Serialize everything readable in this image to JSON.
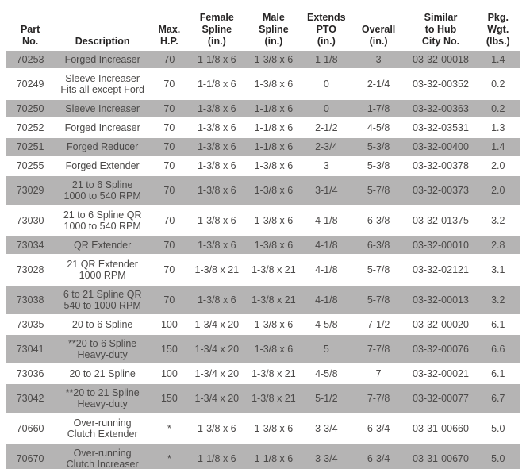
{
  "table": {
    "headers": [
      "Part\nNo.",
      "Description",
      "Max.\nH.P.",
      "Female\nSpline\n(in.)",
      "Male\nSpline\n(in.)",
      "Extends\nPTO\n(in.)",
      "Overall\n(in.)",
      "Similar\nto Hub\nCity No.",
      "Pkg.\nWgt.\n(lbs.)"
    ],
    "rows": [
      {
        "part": "70253",
        "desc": "Forged Increaser",
        "hp": "70",
        "female": "1-1/8 x 6",
        "male": "1-3/8 x 6",
        "pto": "1-1/8",
        "overall": "3",
        "hub": "03-32-00018",
        "wgt": "1.4"
      },
      {
        "part": "70249",
        "desc": "Sleeve Increaser\nFits all except Ford",
        "hp": "70",
        "female": "1-1/8 x 6",
        "male": "1-3/8 x 6",
        "pto": "0",
        "overall": "2-1/4",
        "hub": "03-32-00352",
        "wgt": "0.2"
      },
      {
        "part": "70250",
        "desc": "Sleeve Increaser",
        "hp": "70",
        "female": "1-3/8 x 6",
        "male": "1-1/8 x 6",
        "pto": "0",
        "overall": "1-7/8",
        "hub": "03-32-00363",
        "wgt": "0.2"
      },
      {
        "part": "70252",
        "desc": "Forged Increaser",
        "hp": "70",
        "female": "1-3/8 x 6",
        "male": "1-1/8 x 6",
        "pto": "2-1/2",
        "overall": "4-5/8",
        "hub": "03-32-03531",
        "wgt": "1.3"
      },
      {
        "part": "70251",
        "desc": "Forged Reducer",
        "hp": "70",
        "female": "1-3/8 x 6",
        "male": "1-1/8 x 6",
        "pto": "2-3/4",
        "overall": "5-3/8",
        "hub": "03-32-00400",
        "wgt": "1.4"
      },
      {
        "part": "70255",
        "desc": "Forged Extender",
        "hp": "70",
        "female": "1-3/8 x 6",
        "male": "1-3/8 x 6",
        "pto": "3",
        "overall": "5-3/8",
        "hub": "03-32-00378",
        "wgt": "2.0"
      },
      {
        "part": "73029",
        "desc": "21 to 6 Spline\n1000 to 540 RPM",
        "hp": "70",
        "female": "1-3/8 x 6",
        "male": "1-3/8 x 6",
        "pto": "3-1/4",
        "overall": "5-7/8",
        "hub": "03-32-00373",
        "wgt": "2.0"
      },
      {
        "part": "73030",
        "desc": "21 to 6 Spline QR\n1000 to 540 RPM",
        "hp": "70",
        "female": "1-3/8 x 6",
        "male": "1-3/8 x 6",
        "pto": "4-1/8",
        "overall": "6-3/8",
        "hub": "03-32-01375",
        "wgt": "3.2"
      },
      {
        "part": "73034",
        "desc": "QR Extender",
        "hp": "70",
        "female": "1-3/8 x 6",
        "male": "1-3/8 x 6",
        "pto": "4-1/8",
        "overall": "6-3/8",
        "hub": "03-32-00010",
        "wgt": "2.8"
      },
      {
        "part": "73028",
        "desc": "21 QR Extender\n1000 RPM",
        "hp": "70",
        "female": "1-3/8 x 21",
        "male": "1-3/8 x 21",
        "pto": "4-1/8",
        "overall": "5-7/8",
        "hub": "03-32-02121",
        "wgt": "3.1"
      },
      {
        "part": "73038",
        "desc": "6 to 21 Spline QR\n540 to 1000 RPM",
        "hp": "70",
        "female": "1-3/8 x 6",
        "male": "1-3/8 x 21",
        "pto": "4-1/8",
        "overall": "5-7/8",
        "hub": "03-32-00013",
        "wgt": "3.2"
      },
      {
        "part": "73035",
        "desc": "20 to 6 Spline",
        "hp": "100",
        "female": "1-3/4 x 20",
        "male": "1-3/8 x 6",
        "pto": "4-5/8",
        "overall": "7-1/2",
        "hub": "03-32-00020",
        "wgt": "6.1"
      },
      {
        "part": "73041",
        "desc": "**20 to 6 Spline\nHeavy-duty",
        "hp": "150",
        "female": "1-3/4 x 20",
        "male": "1-3/8 x 6",
        "pto": "5",
        "overall": "7-7/8",
        "hub": "03-32-00076",
        "wgt": "6.6"
      },
      {
        "part": "73036",
        "desc": "20 to 21 Spline",
        "hp": "100",
        "female": "1-3/4 x 20",
        "male": "1-3/8 x 21",
        "pto": "4-5/8",
        "overall": "7",
        "hub": "03-32-00021",
        "wgt": "6.1"
      },
      {
        "part": "73042",
        "desc": "**20 to 21 Spline\nHeavy-duty",
        "hp": "150",
        "female": "1-3/4 x 20",
        "male": "1-3/8 x 21",
        "pto": "5-1/2",
        "overall": "7-7/8",
        "hub": "03-32-00077",
        "wgt": "6.7"
      },
      {
        "part": "70660",
        "desc": "Over-running\nClutch Extender",
        "hp": "*",
        "female": "1-3/8 x 6",
        "male": "1-3/8 x 6",
        "pto": "3-3/4",
        "overall": "6-3/4",
        "hub": "03-31-00660",
        "wgt": "5.0"
      },
      {
        "part": "70670",
        "desc": "Over-running\nClutch Increaser",
        "hp": "*",
        "female": "1-1/8 x 6",
        "male": "1-1/8 x 6",
        "pto": "3-3/4",
        "overall": "6-3/4",
        "hub": "03-31-00670",
        "wgt": "5.0"
      }
    ],
    "colors": {
      "row_shade": "#b5b4b4",
      "row_alt": "#ffffff",
      "header_text": "#272525",
      "body_text": "#4b4948"
    }
  }
}
